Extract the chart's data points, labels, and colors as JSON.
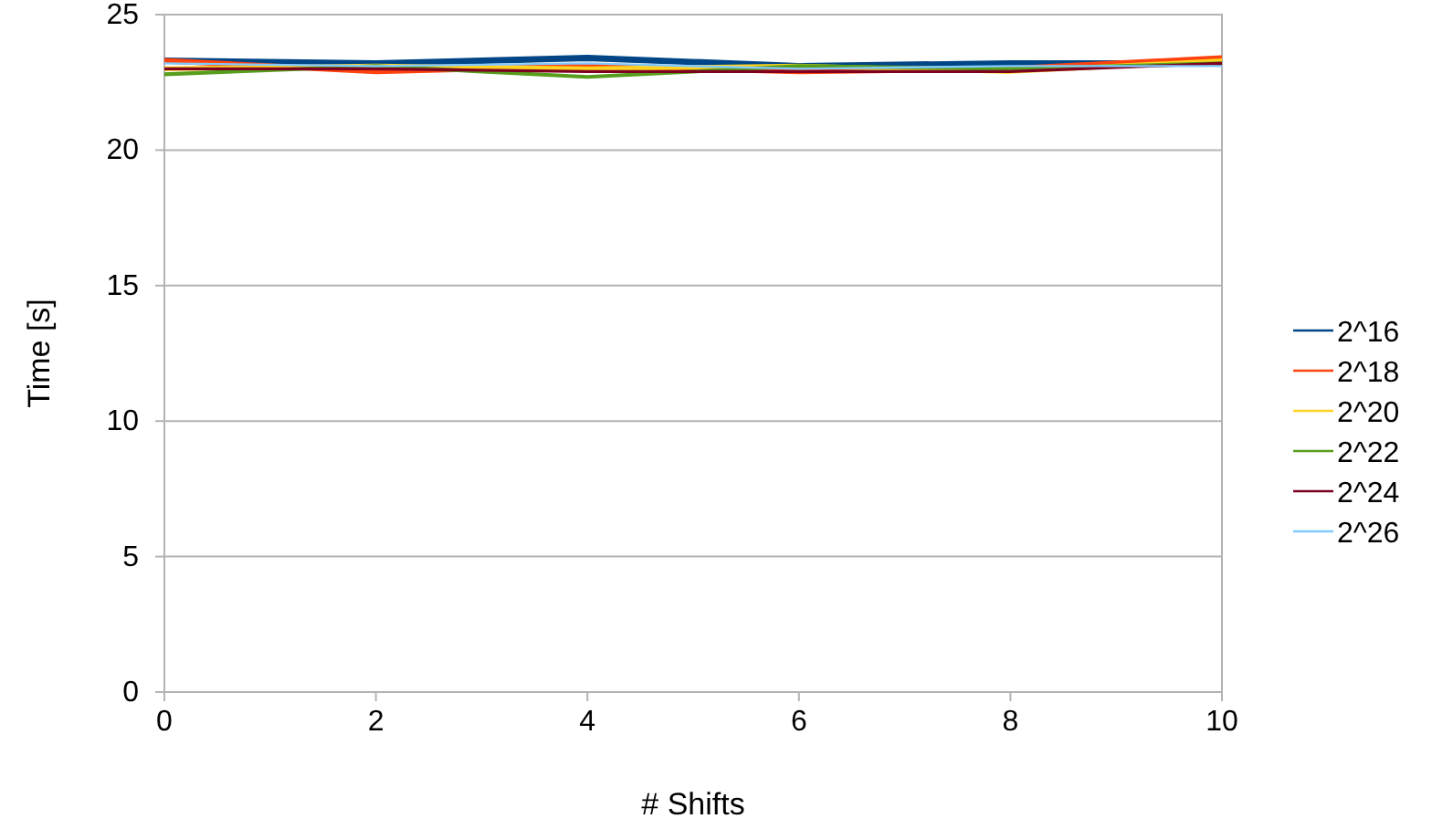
{
  "chart_data": {
    "type": "line",
    "xlabel": "# Shifts",
    "ylabel": "Time [s]",
    "x": [
      0,
      2,
      4,
      6,
      8,
      10
    ],
    "xlim": [
      0,
      10
    ],
    "xticks": [
      0,
      2,
      4,
      6,
      8,
      10
    ],
    "ylim": [
      0,
      25
    ],
    "yticks": [
      0,
      5,
      10,
      15,
      20,
      25
    ],
    "grid": "y",
    "legend": "right",
    "marker": "none",
    "line_style": "solid",
    "series": [
      {
        "name": "2^16",
        "color": "#004586",
        "values": [
          23.3,
          23.2,
          23.4,
          23.1,
          23.2,
          23.2
        ]
      },
      {
        "name": "2^18",
        "color": "#ff420e",
        "values": [
          23.3,
          22.9,
          23.1,
          22.9,
          23.0,
          23.4
        ]
      },
      {
        "name": "2^20",
        "color": "#ffd320",
        "values": [
          23.0,
          23.1,
          23.0,
          23.1,
          22.9,
          23.3
        ]
      },
      {
        "name": "2^22",
        "color": "#579d1c",
        "values": [
          22.8,
          23.1,
          22.7,
          23.1,
          23.0,
          23.2
        ]
      },
      {
        "name": "2^24",
        "color": "#7e0021",
        "values": [
          23.0,
          23.0,
          22.9,
          22.9,
          22.9,
          23.2
        ]
      },
      {
        "name": "2^26",
        "color": "#83caff",
        "values": [
          23.2,
          23.1,
          23.2,
          23.0,
          23.1,
          23.1
        ]
      }
    ]
  }
}
